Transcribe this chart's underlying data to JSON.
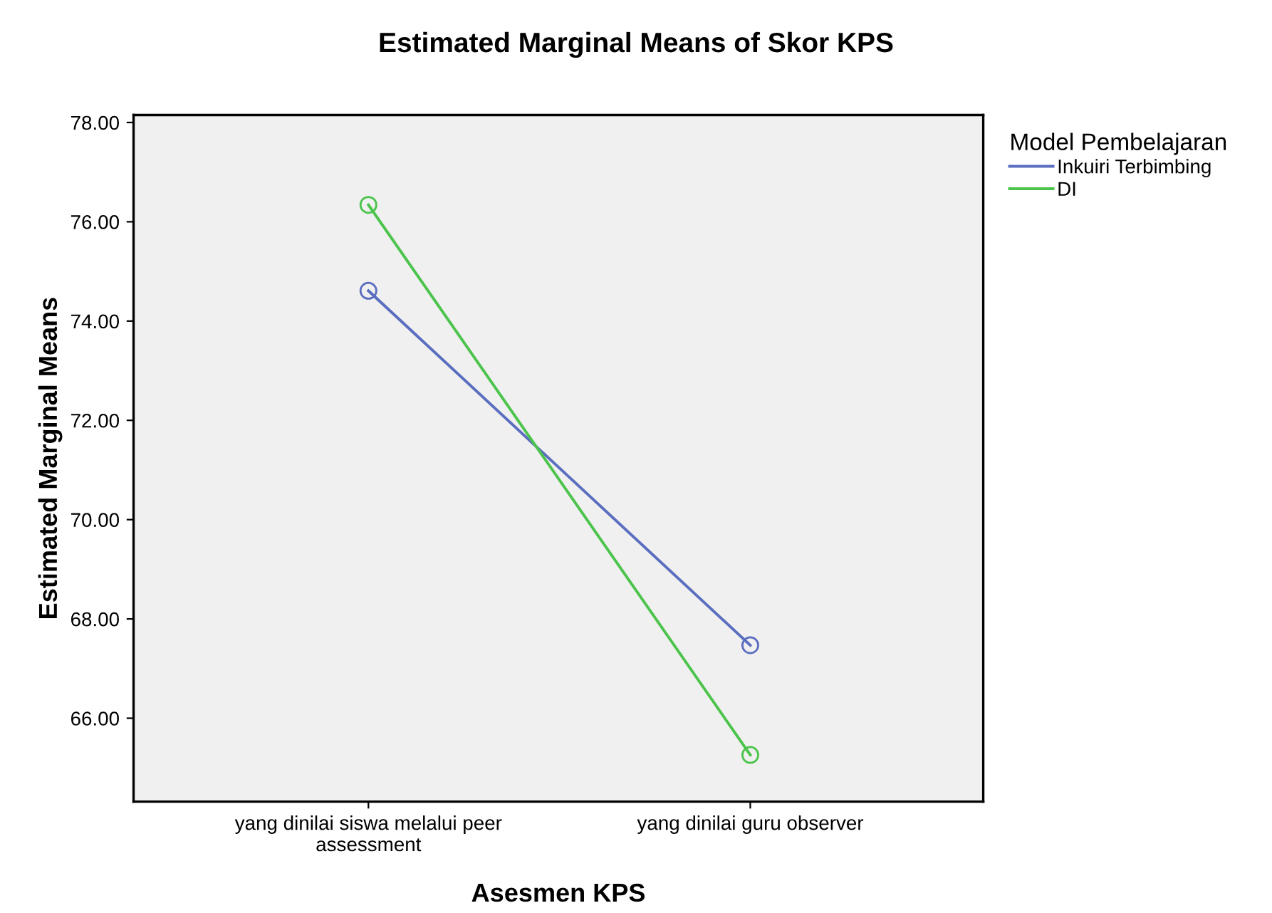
{
  "chart_data": {
    "type": "line",
    "title": "Estimated Marginal Means of Skor KPS",
    "xlabel": "Asesmen KPS",
    "ylabel": "Estimated Marginal Means",
    "legend_title": "Model Pembelajaran",
    "categories": [
      "yang dinilai siswa melalui peer\nassessment",
      "yang dinilai guru observer"
    ],
    "series": [
      {
        "name": "Inkuiri Terbimbing",
        "color": "#5a6dbf",
        "values": [
          74.61,
          67.47
        ]
      },
      {
        "name": "DI",
        "color": "#4cc44c",
        "values": [
          76.34,
          65.26
        ]
      }
    ],
    "ylim": [
      64.32,
      78.15
    ],
    "yticks": [
      {
        "value": 66,
        "label": "66.00"
      },
      {
        "value": 68,
        "label": "68.00"
      },
      {
        "value": 70,
        "label": "70.00"
      },
      {
        "value": 72,
        "label": "72.00"
      },
      {
        "value": 74,
        "label": "74.00"
      },
      {
        "value": 76,
        "label": "76.00"
      },
      {
        "value": 78,
        "label": "78.00"
      }
    ],
    "grid": false,
    "legend": "top right",
    "marker": "circle",
    "line_style": "solid"
  }
}
